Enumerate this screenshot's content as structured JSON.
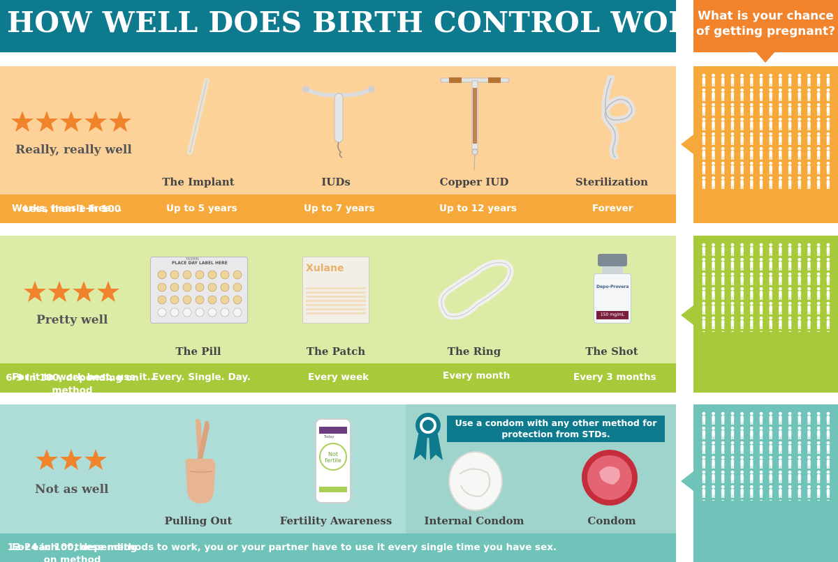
{
  "header": {
    "title": "HOW WELL DOES BIRTH CONTROL WORK?",
    "chance_question": "What is your chance of getting pregnant?"
  },
  "tiers": [
    {
      "rating": "Really, really well",
      "stars": 5,
      "band_intro": "Works, hassle-free...",
      "methods": [
        {
          "name": "The Implant",
          "duration": "Up to 5 years",
          "icon": "implant-rod-icon"
        },
        {
          "name": "IUDs",
          "duration": "Up to 7 years",
          "icon": "iud-icon"
        },
        {
          "name": "Copper IUD",
          "duration": "Up to 12 years",
          "icon": "copper-iud-icon"
        },
        {
          "name": "Sterilization",
          "duration": "Forever",
          "icon": "knot-icon"
        }
      ],
      "chance": "Less than 1 in 100"
    },
    {
      "rating": "Pretty well",
      "stars": 4,
      "band_intro": "For it to work best, use it...",
      "methods": [
        {
          "name": "The Pill",
          "duration": "Every. Single. Day.",
          "icon": "pill-pack-icon"
        },
        {
          "name": "The Patch",
          "duration": "Every week",
          "icon": "patch-icon"
        },
        {
          "name": "The Ring",
          "duration": "Every month",
          "icon": "ring-icon"
        },
        {
          "name": "The Shot",
          "duration": "Every 3 months",
          "icon": "vial-icon"
        }
      ],
      "chance": "6-9 in 100, depending on method"
    },
    {
      "rating": "Not as well",
      "stars": 3,
      "methods": [
        {
          "name": "Pulling Out",
          "icon": "crossed-fingers-icon"
        },
        {
          "name": "Fertility Awareness",
          "icon": "phone-app-icon"
        },
        {
          "name": "Internal Condom",
          "icon": "internal-condom-icon"
        },
        {
          "name": "Condom",
          "icon": "condom-icon"
        }
      ],
      "condom_note": "Use a condom with any other method for protection from STDs.",
      "band_note": "For each of these methods to work, you or your partner have to use it every single time you have sex.",
      "chance": "12-24 in 100, depending on method"
    }
  ],
  "pill_pack": {
    "top_label": "PLACE DAY LABEL HERE",
    "brand": "YASMIN"
  },
  "patch": {
    "brand": "Xulane"
  },
  "vial": {
    "label": "150 mg/mL",
    "brand": "Depo-Provera"
  },
  "app": {
    "status": "Not fertile",
    "day": "Today"
  },
  "colors": {
    "teal": "#0e7a8e",
    "orange": "#f0832b",
    "tier1_bg": "#fcd299",
    "tier1_band": "#f6a93a",
    "tier2_bg": "#dceba6",
    "tier2_band": "#a8c93a",
    "tier3_bg": "#aedcd6",
    "tier3_band": "#6fc3b8",
    "star": "#f0832b"
  }
}
